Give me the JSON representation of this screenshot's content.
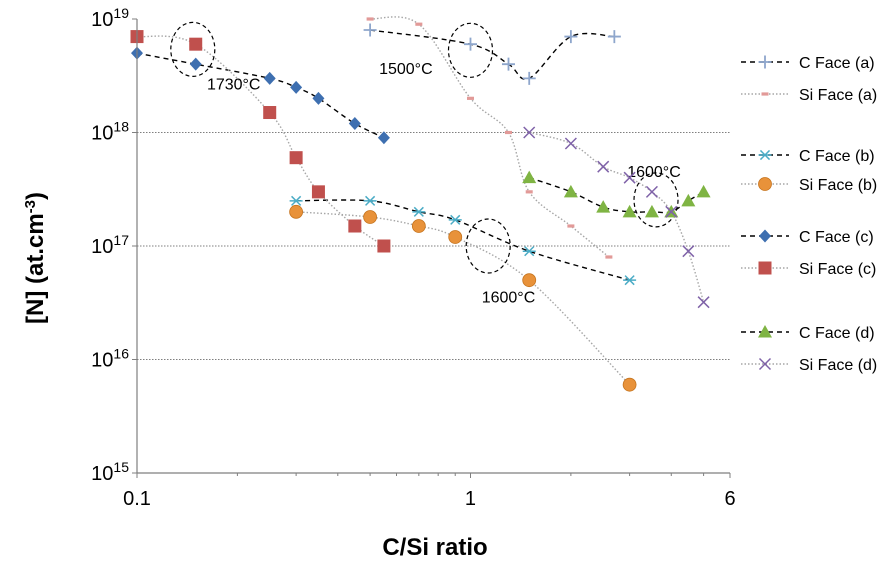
{
  "chart_data": {
    "type": "scatter",
    "title": "",
    "xlabel": "C/Si ratio",
    "ylabel_main": "[N] (at.cm",
    "ylabel_sup": "-3",
    "ylabel_end": ")",
    "xscale": "log",
    "yscale": "log",
    "xlim": [
      0.1,
      6
    ],
    "ylim": [
      1000000000000000.0,
      1e+19
    ],
    "x_ticks": [
      {
        "value": 0.1,
        "label": "0.1"
      },
      {
        "value": 1,
        "label": "1"
      },
      {
        "value": 6,
        "label": "6"
      }
    ],
    "y_ticks": [
      {
        "value": 1000000000000000.0,
        "base": "10",
        "exp": "15"
      },
      {
        "value": 1e+16,
        "base": "10",
        "exp": "16"
      },
      {
        "value": 1e+17,
        "base": "10",
        "exp": "17"
      },
      {
        "value": 1e+18,
        "base": "10",
        "exp": "18"
      },
      {
        "value": 1e+19,
        "base": "10",
        "exp": "19"
      }
    ],
    "grid": "horizontal",
    "legend_position": "right",
    "series": [
      {
        "name": "C Face (a)",
        "marker": "plus",
        "color": "#8ea6cc",
        "line": "dashed",
        "line_color": "#000000",
        "points": [
          [
            0.5,
            8e+18
          ],
          [
            1.0,
            6e+18
          ],
          [
            1.3,
            4e+18
          ],
          [
            1.5,
            3e+18
          ],
          [
            2.0,
            7e+18
          ],
          [
            2.7,
            7e+18
          ]
        ]
      },
      {
        "name": "Si Face (a)",
        "marker": "dash",
        "color": "#e29a98",
        "line": "dotted",
        "line_color": "#a6a6a6",
        "points": [
          [
            0.5,
            1e+19
          ],
          [
            0.7,
            9e+18
          ],
          [
            1.0,
            2e+18
          ],
          [
            1.3,
            1e+18
          ],
          [
            1.5,
            3e+17
          ],
          [
            2.0,
            1.5e+17
          ],
          [
            2.6,
            8e+16
          ]
        ]
      },
      {
        "name": "C Face (b)",
        "marker": "asterisk",
        "color": "#4bacc6",
        "line": "dashed",
        "line_color": "#000000",
        "points": [
          [
            0.3,
            2.5e+17
          ],
          [
            0.5,
            2.5e+17
          ],
          [
            0.7,
            2e+17
          ],
          [
            0.9,
            1.7e+17
          ],
          [
            1.5,
            9e+16
          ],
          [
            3.0,
            5e+16
          ]
        ]
      },
      {
        "name": "Si Face (b)",
        "marker": "circle",
        "color": "#e8923a",
        "line": "dotted",
        "line_color": "#a6a6a6",
        "points": [
          [
            0.3,
            2e+17
          ],
          [
            0.5,
            1.8e+17
          ],
          [
            0.7,
            1.5e+17
          ],
          [
            0.9,
            1.2e+17
          ],
          [
            1.5,
            5e+16
          ],
          [
            3.0,
            6000000000000000.0
          ]
        ]
      },
      {
        "name": "C Face (c)",
        "marker": "diamond",
        "color": "#3e6fb0",
        "line": "dashed",
        "line_color": "#000000",
        "points": [
          [
            0.1,
            5e+18
          ],
          [
            0.15,
            4e+18
          ],
          [
            0.25,
            3e+18
          ],
          [
            0.3,
            2.5e+18
          ],
          [
            0.35,
            2e+18
          ],
          [
            0.45,
            1.2e+18
          ],
          [
            0.55,
            9e+17
          ]
        ]
      },
      {
        "name": "Si Face (c)",
        "marker": "square",
        "color": "#c0504d",
        "line": "dotted",
        "line_color": "#a6a6a6",
        "points": [
          [
            0.1,
            7e+18
          ],
          [
            0.15,
            6e+18
          ],
          [
            0.25,
            1.5e+18
          ],
          [
            0.3,
            6e+17
          ],
          [
            0.35,
            3e+17
          ],
          [
            0.45,
            1.5e+17
          ],
          [
            0.55,
            1e+17
          ]
        ]
      },
      {
        "name": "C Face (d)",
        "marker": "triangle",
        "color": "#7fb443",
        "line": "dashed",
        "line_color": "#000000",
        "points": [
          [
            1.5,
            4e+17
          ],
          [
            2.0,
            3e+17
          ],
          [
            2.5,
            2.2e+17
          ],
          [
            3.0,
            2e+17
          ],
          [
            3.5,
            2e+17
          ],
          [
            4.0,
            2e+17
          ],
          [
            4.5,
            2.5e+17
          ],
          [
            5.0,
            3e+17
          ]
        ]
      },
      {
        "name": "Si Face (d)",
        "marker": "x",
        "color": "#7f62a8",
        "line": "dotted",
        "line_color": "#a6a6a6",
        "points": [
          [
            1.5,
            1e+18
          ],
          [
            2.0,
            8e+17
          ],
          [
            2.5,
            5e+17
          ],
          [
            3.0,
            4e+17
          ],
          [
            3.5,
            3e+17
          ],
          [
            4.0,
            2e+17
          ],
          [
            4.5,
            9e+16
          ],
          [
            5.0,
            3.2e+16
          ]
        ]
      }
    ],
    "annotations": [
      {
        "text": "1730°C",
        "ellipse_center": [
          0.147,
          5.4e+18
        ],
        "text_at": [
          0.195,
          2.7e+18
        ]
      },
      {
        "text": "1500°C",
        "ellipse_center": [
          1.0,
          5.3e+18
        ],
        "text_at": [
          0.64,
          3.7e+18
        ]
      },
      {
        "text": "1600°C",
        "ellipse_center": [
          1.13,
          1e+17
        ],
        "text_at": [
          1.3,
          3.6e+16
        ]
      },
      {
        "text": "1600°C",
        "ellipse_center": [
          3.6,
          2.55e+17
        ],
        "text_at": [
          3.55,
          4.6e+17
        ]
      }
    ]
  }
}
